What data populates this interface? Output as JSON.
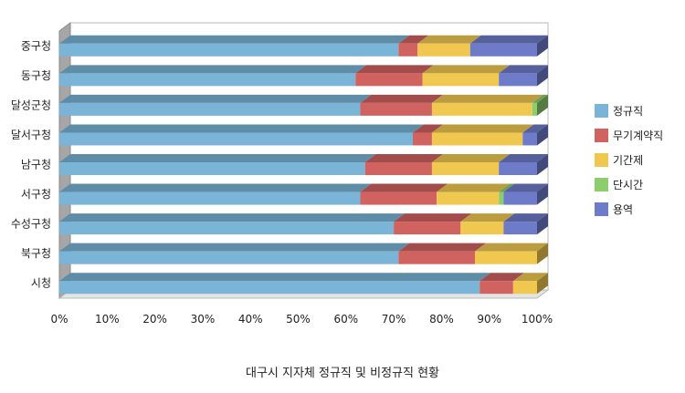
{
  "chart_data": {
    "type": "bar",
    "orientation": "horizontal",
    "stacked": "percent",
    "three_d": true,
    "title": "대구시 지자체 정규직 및 비정규직 현황",
    "categories": [
      "중구청",
      "동구청",
      "달성군청",
      "달서구청",
      "남구청",
      "서구청",
      "수성구청",
      "북구청",
      "시청"
    ],
    "series": [
      {
        "name": "정규직",
        "color": "#7ab4d6",
        "values": [
          71,
          62,
          63,
          74,
          64,
          63,
          70,
          71,
          88
        ]
      },
      {
        "name": "무기계약직",
        "color": "#d06260",
        "values": [
          4,
          14,
          15,
          4,
          14,
          16,
          14,
          16,
          7
        ]
      },
      {
        "name": "기간제",
        "color": "#f0c850",
        "values": [
          11,
          16,
          21,
          19,
          14,
          13,
          9,
          13,
          5
        ]
      },
      {
        "name": "단시간",
        "color": "#8ccd6e",
        "values": [
          0,
          0,
          1,
          0,
          0,
          1,
          0,
          0,
          0
        ]
      },
      {
        "name": "용역",
        "color": "#6d7bc8",
        "values": [
          14,
          8,
          0,
          3,
          8,
          7,
          7,
          0,
          0
        ]
      }
    ],
    "x_ticks": [
      "0%",
      "10%",
      "20%",
      "30%",
      "40%",
      "50%",
      "60%",
      "70%",
      "80%",
      "90%",
      "100%"
    ],
    "xlim": [
      0,
      100
    ],
    "legend_position": "right",
    "grid": false
  }
}
